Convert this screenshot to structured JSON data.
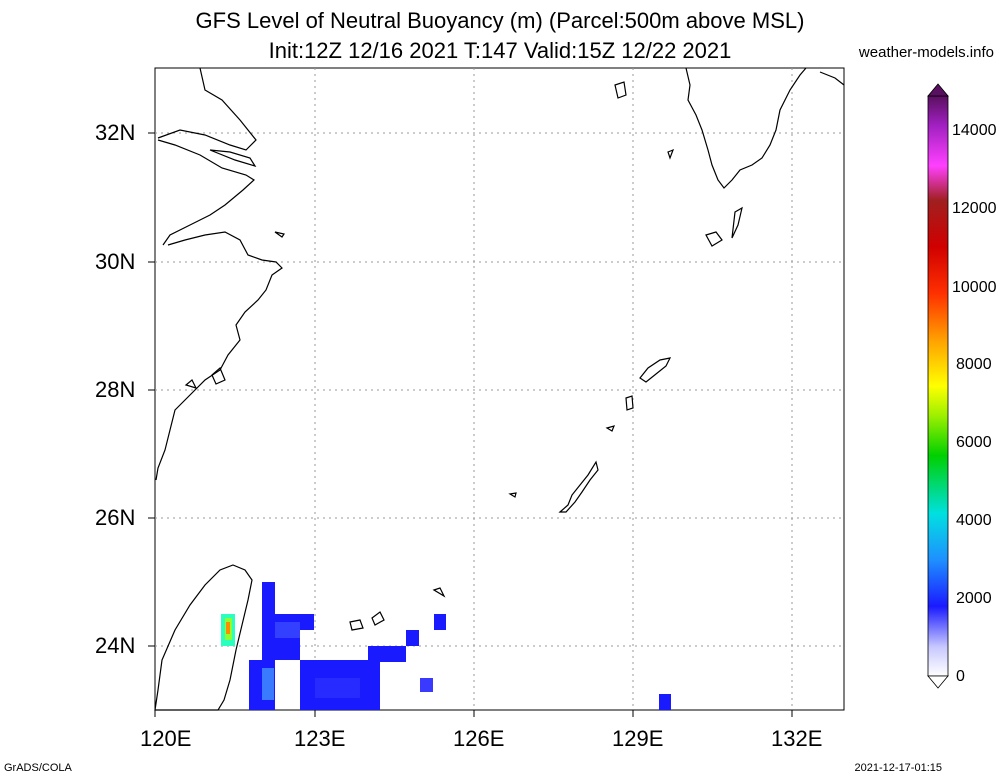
{
  "title_line1": "GFS Level of Neutral Buoyancy (m) (Parcel:500m above MSL)",
  "title_line2": "Init:12Z 12/16 2021 T:147 Valid:15Z 12/22 2021",
  "site": "weather-models.info",
  "footer_left": "GrADS/COLA",
  "footer_right": "2021-12-17-01:15",
  "lon_labels": [
    "120E",
    "123E",
    "126E",
    "129E",
    "132E"
  ],
  "lat_labels": [
    "32N",
    "30N",
    "28N",
    "26N",
    "24N"
  ],
  "colorbar_labels": [
    "14000",
    "12000",
    "10000",
    "8000",
    "6000",
    "4000",
    "2000",
    "0"
  ],
  "colors": {
    "coast": "#000000",
    "grid": "#888888",
    "cb_top": "#5a1060",
    "blue": "#1a1aff",
    "light_blue": "#3a55ff"
  }
}
